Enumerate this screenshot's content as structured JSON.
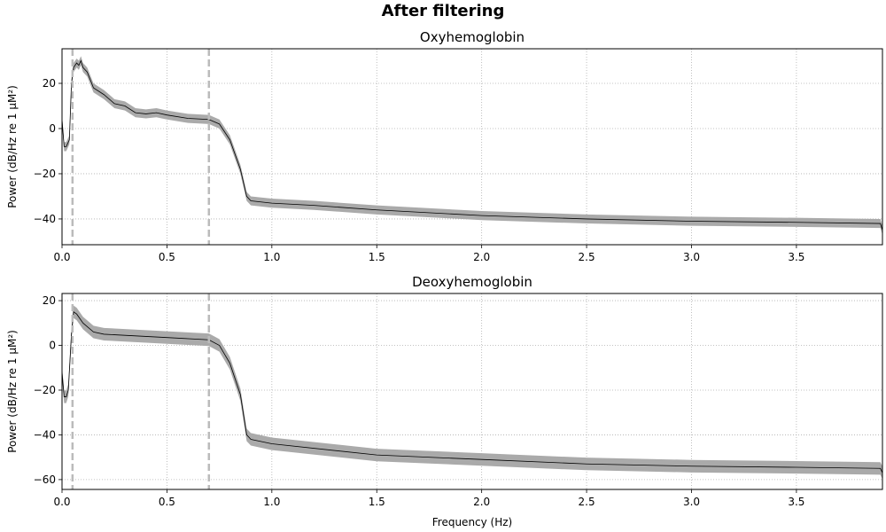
{
  "figure_title": "After filtering",
  "chart_data": [
    {
      "type": "line",
      "title": "Oxyhemoglobin",
      "xlabel": "",
      "ylabel": "Power (dB/Hz re 1 µM²)",
      "xlim": [
        0,
        3.91
      ],
      "ylim": [
        -51.4,
        35.3
      ],
      "xticks": [
        "0.0",
        "0.5",
        "1.0",
        "1.5",
        "2.0",
        "2.5",
        "3.0",
        "3.5"
      ],
      "xtick_values": [
        0,
        0.5,
        1.0,
        1.5,
        2.0,
        2.5,
        3.0,
        3.5
      ],
      "yticks": [
        "20",
        "0",
        "−20",
        "−40"
      ],
      "ytick_values": [
        20,
        0,
        -20,
        -40
      ],
      "grid": true,
      "vlines": [
        0.05,
        0.7
      ],
      "band_halfwidth_db": 2,
      "series": [
        {
          "x": [
            0,
            0.01,
            0.02,
            0.035,
            0.045,
            0.055,
            0.07,
            0.08,
            0.09,
            0.1,
            0.12,
            0.15,
            0.2,
            0.25,
            0.3,
            0.35,
            0.4,
            0.45,
            0.5,
            0.6,
            0.7,
            0.75,
            0.8,
            0.85,
            0.88,
            0.9,
            1.0,
            1.2,
            1.5,
            2.0,
            2.5,
            3.0,
            3.5,
            3.9,
            3.91
          ],
          "y": [
            4,
            -8,
            -8,
            -5,
            20,
            27,
            29,
            28,
            30,
            27,
            25,
            18,
            15,
            11,
            10,
            7,
            6.5,
            7,
            6,
            4.5,
            4,
            2,
            -5,
            -18,
            -30,
            -32,
            -33,
            -34,
            -36,
            -38.5,
            -40,
            -41,
            -41.5,
            -42,
            -45
          ]
        }
      ]
    },
    {
      "type": "line",
      "title": "Deoxyhemoglobin",
      "xlabel": "Frequency (Hz)",
      "ylabel": "Power (dB/Hz re 1 µM²)",
      "xlim": [
        0,
        3.91
      ],
      "ylim": [
        -64.4,
        23.2
      ],
      "xticks": [
        "0.0",
        "0.5",
        "1.0",
        "1.5",
        "2.0",
        "2.5",
        "3.0",
        "3.5"
      ],
      "xtick_values": [
        0,
        0.5,
        1.0,
        1.5,
        2.0,
        2.5,
        3.0,
        3.5
      ],
      "yticks": [
        "20",
        "0",
        "−20",
        "−40",
        "−60"
      ],
      "ytick_values": [
        20,
        0,
        -20,
        -40,
        -60
      ],
      "grid": true,
      "vlines": [
        0.05,
        0.7
      ],
      "band_halfwidth_db": 2.8,
      "series": [
        {
          "x": [
            0,
            0.01,
            0.02,
            0.03,
            0.045,
            0.055,
            0.07,
            0.1,
            0.15,
            0.2,
            0.3,
            0.5,
            0.7,
            0.75,
            0.8,
            0.85,
            0.88,
            0.9,
            1.0,
            1.5,
            2.0,
            2.5,
            3.0,
            3.5,
            3.9,
            3.91
          ],
          "y": [
            -12,
            -23,
            -23,
            -20,
            5,
            15,
            14,
            10,
            6,
            5,
            4.5,
            3.5,
            2.5,
            0,
            -8,
            -22,
            -40,
            -42,
            -44,
            -49,
            -51,
            -53,
            -54,
            -54.5,
            -55,
            -57
          ]
        }
      ]
    }
  ]
}
